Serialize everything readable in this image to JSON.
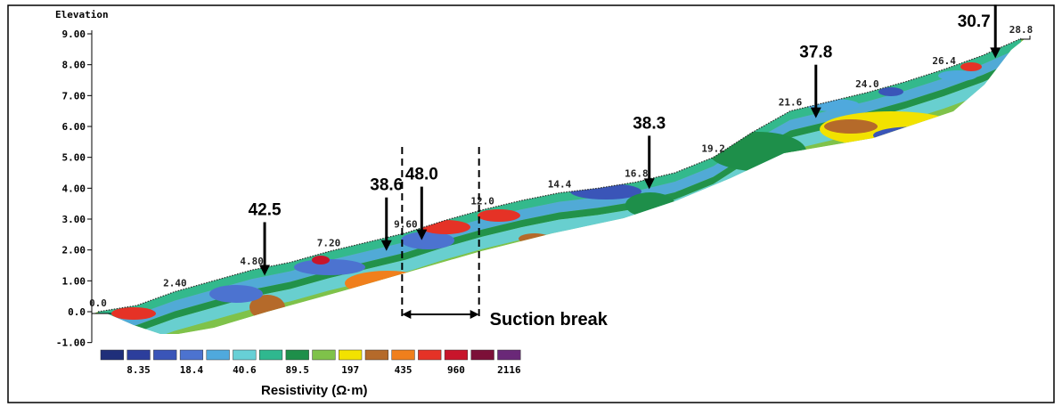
{
  "chart_data": {
    "type": "heatmap",
    "title": "",
    "ylabel": "Elevation",
    "xlabel": "",
    "ylim": [
      -1.0,
      9.0
    ],
    "xlim": [
      0,
      28.8
    ],
    "y_ticks": [
      "9.00",
      "8.00",
      "7.00",
      "6.00",
      "5.00",
      "4.00",
      "3.00",
      "2.00",
      "1.00",
      "0.0",
      "-1.00"
    ],
    "y_tick_values": [
      9,
      8,
      7,
      6,
      5,
      4,
      3,
      2,
      1,
      0,
      -1
    ],
    "surface_labels": [
      {
        "text": "0.0",
        "x": 0.0,
        "y": 0.0
      },
      {
        "text": "2.40",
        "x": 2.4,
        "y": 0.65
      },
      {
        "text": "4.80",
        "x": 4.8,
        "y": 1.35
      },
      {
        "text": "7.20",
        "x": 7.2,
        "y": 1.95
      },
      {
        "text": "9.60",
        "x": 9.6,
        "y": 2.55
      },
      {
        "text": "12.0",
        "x": 12.0,
        "y": 3.3
      },
      {
        "text": "14.4",
        "x": 14.4,
        "y": 3.85
      },
      {
        "text": "16.8",
        "x": 16.8,
        "y": 4.2
      },
      {
        "text": "19.2",
        "x": 19.2,
        "y": 5.0
      },
      {
        "text": "21.6",
        "x": 21.6,
        "y": 6.5
      },
      {
        "text": "24.0",
        "x": 24.0,
        "y": 7.1
      },
      {
        "text": "26.4",
        "x": 26.4,
        "y": 7.85
      },
      {
        "text": "28.8",
        "x": 28.8,
        "y": 8.85
      }
    ],
    "surface_profile": [
      [
        0.0,
        0.0
      ],
      [
        1.2,
        0.2
      ],
      [
        2.4,
        0.65
      ],
      [
        3.6,
        1.0
      ],
      [
        4.8,
        1.35
      ],
      [
        6.0,
        1.6
      ],
      [
        7.2,
        1.95
      ],
      [
        8.4,
        2.25
      ],
      [
        9.6,
        2.55
      ],
      [
        10.8,
        2.95
      ],
      [
        12.0,
        3.3
      ],
      [
        13.2,
        3.6
      ],
      [
        14.4,
        3.85
      ],
      [
        15.6,
        4.0
      ],
      [
        16.8,
        4.2
      ],
      [
        18.0,
        4.5
      ],
      [
        19.2,
        5.0
      ],
      [
        20.4,
        5.8
      ],
      [
        21.6,
        6.5
      ],
      [
        22.8,
        6.8
      ],
      [
        24.0,
        7.1
      ],
      [
        25.2,
        7.45
      ],
      [
        26.4,
        7.85
      ],
      [
        27.6,
        8.3
      ],
      [
        28.8,
        8.85
      ]
    ],
    "annotations": [
      {
        "text": "42.5",
        "x": 5.2,
        "y": 1.4
      },
      {
        "text": "38.6",
        "x": 9.0,
        "y": 2.2
      },
      {
        "text": "48.0",
        "x": 10.1,
        "y": 2.55
      },
      {
        "text": "38.3",
        "x": 17.2,
        "y": 4.2
      },
      {
        "text": "37.8",
        "x": 22.4,
        "y": 6.5
      },
      {
        "text": "30.7",
        "x": 28.0,
        "y": 8.5
      }
    ],
    "suction_break": {
      "label": "Suction break",
      "x_start": 9.6,
      "x_end": 12.0
    },
    "colorbar": {
      "title": "Resistivity (Ω·m)",
      "colors": [
        "#1f2f7a",
        "#2c3e9c",
        "#3a55b8",
        "#4c73d0",
        "#4fa9dd",
        "#67d0d6",
        "#2fb88f",
        "#1e8f4a",
        "#7fc24a",
        "#f2e200",
        "#b56a2a",
        "#f07f1c",
        "#e53226",
        "#c8152b",
        "#7c1038",
        "#6a2878"
      ],
      "tick_labels": [
        "8.35",
        "18.4",
        "40.6",
        "89.5",
        "197",
        "435",
        "960",
        "2116"
      ]
    }
  }
}
